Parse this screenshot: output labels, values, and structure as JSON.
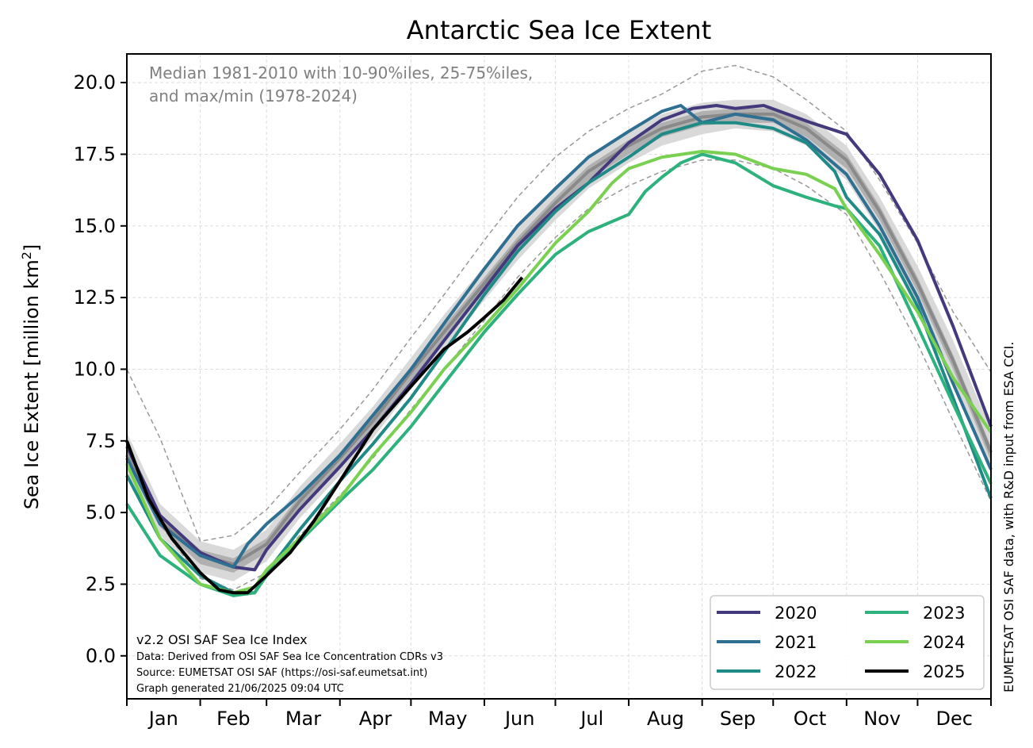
{
  "chart_data": {
    "type": "line",
    "title": "Antarctic Sea Ice Extent",
    "ylabel": "Sea Ice Extent [million km",
    "ylabel_sup": "2",
    "ylabel_end": "]",
    "xlabel": "",
    "ylim": [
      -1.5,
      21.0
    ],
    "xlim": [
      1,
      366
    ],
    "yticks": [
      0.0,
      2.5,
      5.0,
      7.5,
      10.0,
      12.5,
      15.0,
      17.5,
      20.0
    ],
    "ytick_labels": [
      "0.0",
      "2.5",
      "5.0",
      "7.5",
      "10.0",
      "12.5",
      "15.0",
      "17.5",
      "20.0"
    ],
    "month_labels": [
      "Jan",
      "Feb",
      "Mar",
      "Apr",
      "May",
      "Jun",
      "Jul",
      "Aug",
      "Sep",
      "Oct",
      "Nov",
      "Dec"
    ],
    "month_starts": [
      1,
      32,
      60,
      91,
      121,
      152,
      182,
      213,
      244,
      274,
      305,
      335,
      366
    ],
    "grid": true,
    "legend_position": "bottom-right",
    "note_lines": [
      "Median 1981-2010 with 10-90%iles, 25-75%iles,",
      "and max/min (1978-2024)"
    ],
    "credits": [
      "v2.2 OSI SAF Sea Ice Index",
      "Data: Derived from OSI SAF Sea Ice Concentration CDRs v3",
      "Source: EUMETSAT OSI SAF (https://osi-saf.eumetsat.int)",
      "Graph generated 21/06/2025 09:04 UTC"
    ],
    "side_text": "EUMETSAT OSI SAF data, with R&D input from ESA CCI.",
    "climatology": {
      "x": [
        1,
        15,
        32,
        46,
        60,
        74,
        91,
        105,
        121,
        135,
        152,
        166,
        182,
        196,
        213,
        227,
        244,
        258,
        274,
        288,
        305,
        319,
        335,
        350,
        366
      ],
      "median": [
        7.0,
        4.7,
        3.5,
        3.2,
        3.9,
        5.4,
        6.9,
        8.2,
        9.9,
        11.3,
        13.0,
        14.4,
        15.8,
        16.9,
        17.8,
        18.4,
        18.8,
        18.9,
        18.9,
        18.4,
        17.3,
        15.5,
        13.0,
        10.3,
        7.1
      ],
      "p25": [
        6.8,
        4.5,
        3.2,
        2.9,
        3.6,
        5.1,
        6.6,
        7.9,
        9.6,
        11.0,
        12.7,
        14.1,
        15.5,
        16.6,
        17.5,
        18.1,
        18.5,
        18.6,
        18.6,
        18.1,
        17.0,
        15.2,
        12.7,
        10.0,
        6.8
      ],
      "p75": [
        7.2,
        4.9,
        3.7,
        3.4,
        4.1,
        5.6,
        7.1,
        8.4,
        10.1,
        11.5,
        13.2,
        14.6,
        16.0,
        17.1,
        18.0,
        18.6,
        19.0,
        19.1,
        19.1,
        18.6,
        17.5,
        15.7,
        13.2,
        10.5,
        7.3
      ],
      "p10": [
        6.4,
        4.2,
        2.9,
        2.6,
        3.3,
        4.8,
        6.3,
        7.6,
        9.3,
        10.7,
        12.4,
        13.8,
        15.2,
        16.3,
        17.2,
        17.8,
        18.2,
        18.4,
        18.3,
        17.8,
        16.6,
        14.8,
        12.3,
        9.5,
        6.4
      ],
      "p90": [
        7.8,
        5.3,
        4.0,
        3.7,
        4.4,
        5.9,
        7.4,
        8.7,
        10.4,
        11.9,
        13.6,
        15.0,
        16.4,
        17.4,
        18.3,
        18.9,
        19.3,
        19.4,
        19.4,
        18.9,
        17.8,
        16.0,
        13.6,
        11.0,
        7.9
      ],
      "max": [
        10.0,
        7.6,
        4.0,
        4.2,
        5.1,
        6.4,
        7.9,
        9.3,
        11.1,
        12.6,
        14.5,
        16.0,
        17.4,
        18.3,
        19.1,
        19.6,
        20.4,
        20.6,
        20.2,
        19.4,
        18.3,
        16.6,
        14.4,
        12.0,
        9.9
      ],
      "min": [
        7.3,
        4.6,
        2.7,
        2.3,
        2.9,
        4.2,
        5.6,
        6.9,
        8.6,
        10.0,
        11.7,
        13.2,
        14.6,
        15.6,
        16.4,
        16.9,
        17.3,
        17.3,
        17.0,
        16.4,
        15.4,
        13.4,
        10.9,
        8.2,
        5.4
      ]
    },
    "series": [
      {
        "name": "2020",
        "color": "#433a7e",
        "x": [
          1,
          15,
          32,
          46,
          55,
          60,
          74,
          91,
          105,
          121,
          135,
          152,
          166,
          182,
          196,
          213,
          227,
          240,
          250,
          258,
          270,
          280,
          290,
          305,
          319,
          335,
          350,
          366
        ],
        "y": [
          7.3,
          4.9,
          3.6,
          3.1,
          3.0,
          3.7,
          5.1,
          6.6,
          7.9,
          9.5,
          11.0,
          12.8,
          14.3,
          15.6,
          16.5,
          17.9,
          18.7,
          19.1,
          19.2,
          19.1,
          19.2,
          18.9,
          18.6,
          18.2,
          16.8,
          14.5,
          11.5,
          8.0
        ]
      },
      {
        "name": "2021",
        "color": "#2f6f92",
        "x": [
          1,
          15,
          32,
          46,
          52,
          60,
          74,
          91,
          105,
          121,
          135,
          152,
          166,
          182,
          196,
          213,
          227,
          235,
          244,
          258,
          274,
          288,
          305,
          319,
          335,
          350,
          366
        ],
        "y": [
          6.9,
          4.6,
          3.5,
          3.1,
          3.9,
          4.6,
          5.6,
          7.0,
          8.4,
          10.0,
          11.6,
          13.5,
          15.0,
          16.3,
          17.4,
          18.3,
          19.0,
          19.2,
          18.6,
          18.9,
          18.7,
          18.0,
          16.8,
          15.0,
          12.5,
          9.5,
          6.5
        ]
      },
      {
        "name": "2022",
        "color": "#1f8a86",
        "x": [
          1,
          15,
          32,
          46,
          55,
          60,
          74,
          91,
          105,
          121,
          135,
          152,
          166,
          182,
          196,
          213,
          227,
          244,
          258,
          274,
          288,
          300,
          305,
          319,
          335,
          350,
          366
        ],
        "y": [
          6.3,
          4.1,
          2.8,
          2.2,
          2.2,
          2.9,
          4.4,
          6.1,
          7.4,
          9.0,
          10.6,
          12.6,
          14.1,
          15.5,
          16.5,
          17.4,
          18.2,
          18.6,
          18.6,
          18.4,
          17.9,
          16.9,
          16.0,
          14.7,
          12.2,
          9.0,
          5.5
        ]
      },
      {
        "name": "2023",
        "color": "#2db27d",
        "x": [
          1,
          15,
          32,
          46,
          55,
          60,
          74,
          91,
          105,
          121,
          135,
          152,
          166,
          182,
          196,
          213,
          220,
          227,
          235,
          244,
          258,
          274,
          288,
          300,
          305,
          319,
          335,
          350,
          366
        ],
        "y": [
          5.3,
          3.5,
          2.5,
          2.1,
          2.2,
          2.8,
          4.0,
          5.4,
          6.5,
          8.0,
          9.5,
          11.3,
          12.6,
          14.0,
          14.8,
          15.4,
          16.2,
          16.7,
          17.2,
          17.5,
          17.2,
          16.4,
          16.0,
          15.7,
          15.6,
          14.3,
          11.5,
          8.8,
          6.0
        ]
      },
      {
        "name": "2024",
        "color": "#7ad151",
        "x": [
          1,
          15,
          32,
          46,
          55,
          60,
          74,
          91,
          105,
          121,
          135,
          152,
          166,
          182,
          196,
          206,
          213,
          227,
          244,
          258,
          274,
          288,
          300,
          305,
          319,
          335,
          350,
          366
        ],
        "y": [
          6.7,
          4.1,
          2.5,
          2.2,
          2.4,
          3.0,
          4.1,
          5.5,
          7.0,
          8.5,
          10.0,
          11.5,
          12.8,
          14.4,
          15.5,
          16.5,
          17.0,
          17.4,
          17.6,
          17.5,
          17.0,
          16.8,
          16.3,
          15.6,
          14.0,
          12.0,
          9.7,
          7.8
        ]
      },
      {
        "name": "2025",
        "color": "#000000",
        "x": [
          1,
          10,
          20,
          32,
          40,
          46,
          52,
          60,
          70,
          80,
          91,
          105,
          121,
          135,
          145,
          152,
          160,
          168
        ],
        "y": [
          7.5,
          5.5,
          4.1,
          2.9,
          2.3,
          2.2,
          2.2,
          2.8,
          3.6,
          4.7,
          6.1,
          7.9,
          9.4,
          10.7,
          11.3,
          11.8,
          12.4,
          13.2
        ]
      }
    ]
  }
}
